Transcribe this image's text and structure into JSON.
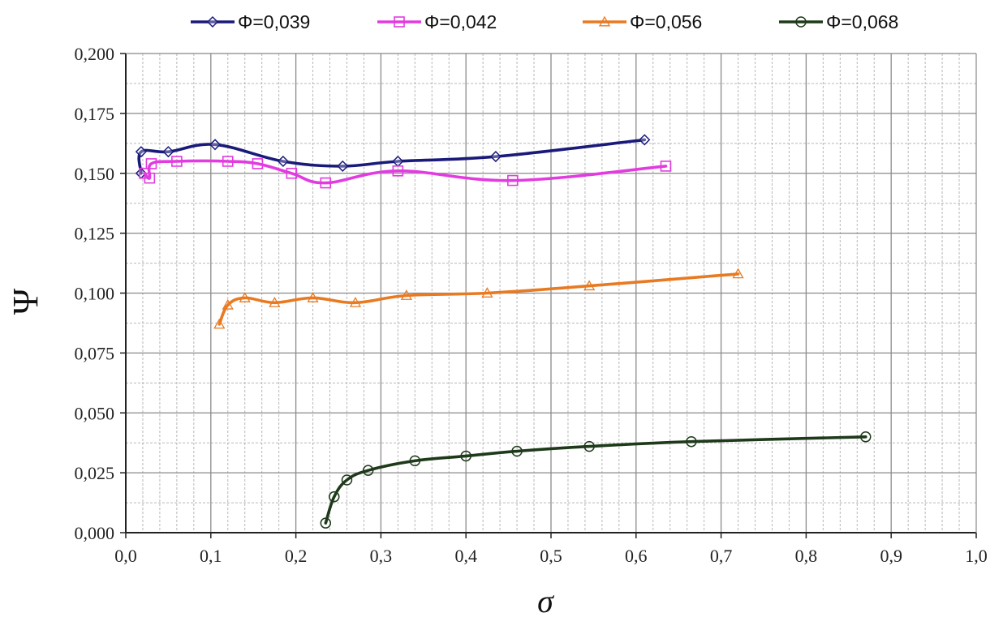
{
  "chart_data": {
    "type": "line",
    "title": "",
    "xlabel": "σ",
    "ylabel": "Ψ",
    "xlim": [
      0.0,
      1.0
    ],
    "ylim": [
      0.0,
      0.2
    ],
    "x_ticks": [
      "0,0",
      "0,1",
      "0,2",
      "0,3",
      "0,4",
      "0,5",
      "0,6",
      "0,7",
      "0,8",
      "0,9",
      "1,0"
    ],
    "y_ticks": [
      "0,000",
      "0,025",
      "0,050",
      "0,075",
      "0,100",
      "0,125",
      "0,150",
      "0,175",
      "0,200"
    ],
    "grid": true,
    "legend_position": "top",
    "series": [
      {
        "name": "Φ=0,039",
        "color": "#1a1a7a",
        "marker": "diamond",
        "points": [
          [
            0.018,
            0.15
          ],
          [
            0.018,
            0.159
          ],
          [
            0.05,
            0.159
          ],
          [
            0.105,
            0.162
          ],
          [
            0.185,
            0.155
          ],
          [
            0.255,
            0.153
          ],
          [
            0.32,
            0.155
          ],
          [
            0.435,
            0.157
          ],
          [
            0.61,
            0.164
          ]
        ]
      },
      {
        "name": "Φ=0,042",
        "color": "#e23be0",
        "marker": "square",
        "points": [
          [
            0.022,
            0.15
          ],
          [
            0.028,
            0.148
          ],
          [
            0.03,
            0.154
          ],
          [
            0.06,
            0.155
          ],
          [
            0.12,
            0.155
          ],
          [
            0.155,
            0.154
          ],
          [
            0.195,
            0.15
          ],
          [
            0.235,
            0.146
          ],
          [
            0.32,
            0.151
          ],
          [
            0.455,
            0.147
          ],
          [
            0.635,
            0.153
          ]
        ]
      },
      {
        "name": "Φ=0,056",
        "color": "#e87a22",
        "marker": "triangle",
        "points": [
          [
            0.11,
            0.087
          ],
          [
            0.12,
            0.095
          ],
          [
            0.14,
            0.098
          ],
          [
            0.175,
            0.096
          ],
          [
            0.22,
            0.098
          ],
          [
            0.27,
            0.096
          ],
          [
            0.33,
            0.099
          ],
          [
            0.425,
            0.1
          ],
          [
            0.545,
            0.103
          ],
          [
            0.72,
            0.108
          ]
        ]
      },
      {
        "name": "Φ=0,068",
        "color": "#1e3a1a",
        "marker": "circle",
        "points": [
          [
            0.235,
            0.004
          ],
          [
            0.245,
            0.015
          ],
          [
            0.26,
            0.022
          ],
          [
            0.285,
            0.026
          ],
          [
            0.34,
            0.03
          ],
          [
            0.4,
            0.032
          ],
          [
            0.46,
            0.034
          ],
          [
            0.545,
            0.036
          ],
          [
            0.665,
            0.038
          ],
          [
            0.87,
            0.04
          ]
        ]
      }
    ]
  }
}
